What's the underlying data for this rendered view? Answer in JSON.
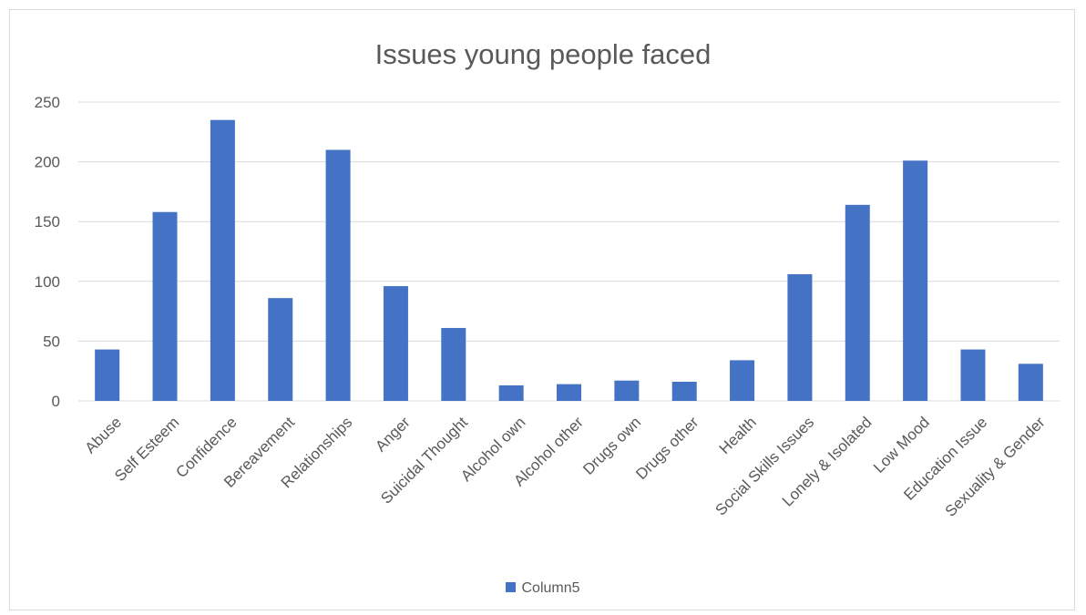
{
  "chart_data": {
    "type": "bar",
    "title": "Issues young people faced",
    "categories": [
      "Abuse",
      "Self Esteem",
      "Confidence",
      "Bereavement",
      "Relationships",
      "Anger",
      "Suicidal Thought",
      "Alcohol own",
      "Alcohol other",
      "Drugs own",
      "Drugs other",
      "Health",
      "Social Skills Issues",
      "Lonely & Isolated",
      "Low Mood",
      "Education Issue",
      "Sexuality & Gender"
    ],
    "series": [
      {
        "name": "Column5",
        "values": [
          43,
          158,
          235,
          86,
          210,
          96,
          61,
          13,
          14,
          17,
          16,
          34,
          106,
          164,
          201,
          43,
          31
        ],
        "color": "#4472c4"
      }
    ],
    "ylim": [
      0,
      250
    ],
    "yticks": [
      "0",
      "50",
      "100",
      "150",
      "200",
      "250"
    ],
    "grid": true,
    "legend_position": "bottom"
  }
}
